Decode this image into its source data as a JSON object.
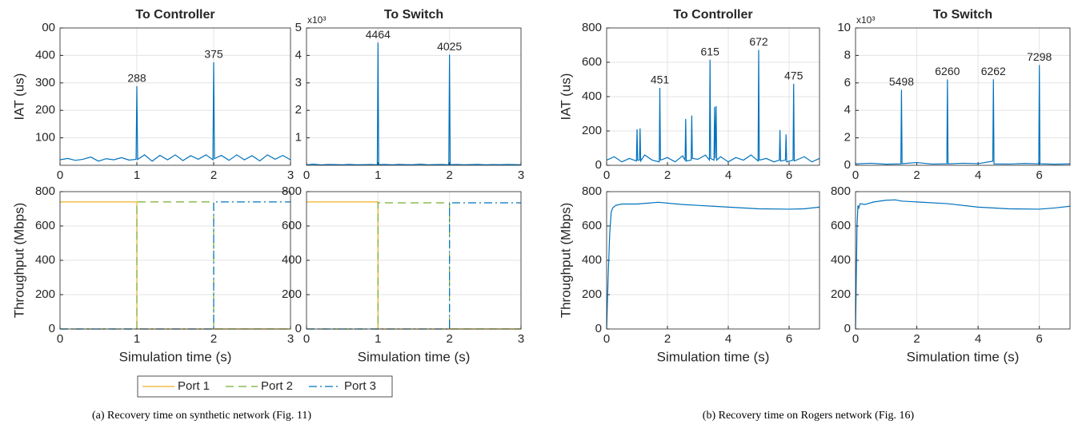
{
  "chart_data": [
    {
      "type": "line",
      "title": "To Controller",
      "ylabel": "IAT (us)",
      "xlim": [
        0,
        3
      ],
      "xticks": [
        0,
        1,
        2,
        3
      ],
      "ylim": [
        0,
        500
      ],
      "yticks": [
        100,
        200,
        300,
        400,
        {
          "value": 500,
          "label": "00"
        }
      ],
      "grid": true,
      "series": [
        {
          "color": "#0072BD",
          "x": [
            0,
            0.1,
            0.2,
            0.3,
            0.4,
            0.5,
            0.6,
            0.7,
            0.8,
            0.9,
            0.99,
            1,
            1.01,
            1.1,
            1.2,
            1.3,
            1.4,
            1.5,
            1.6,
            1.7,
            1.8,
            1.9,
            1.99,
            2,
            2.01,
            2.1,
            2.2,
            2.3,
            2.4,
            2.5,
            2.6,
            2.7,
            2.8,
            2.9,
            3
          ],
          "values": [
            20,
            25,
            18,
            22,
            30,
            15,
            24,
            20,
            28,
            19,
            22,
            288,
            21,
            38,
            15,
            36,
            20,
            38,
            17,
            35,
            22,
            38,
            20,
            375,
            24,
            36,
            18,
            38,
            20,
            35,
            16,
            38,
            22,
            36,
            20
          ]
        }
      ],
      "annotations": [
        {
          "x": 1,
          "y": 288
        },
        {
          "x": 2,
          "y": 375
        }
      ]
    },
    {
      "type": "line",
      "title": "To Switch",
      "y_multiplier": "x10³",
      "xlim": [
        0,
        3
      ],
      "xticks": [
        0,
        1,
        2,
        3
      ],
      "ylim": [
        0,
        5000
      ],
      "yticks": [
        {
          "value": 1000,
          "label": "1"
        },
        {
          "value": 2000,
          "label": "2"
        },
        {
          "value": 3000,
          "label": "3"
        },
        {
          "value": 4000,
          "label": "4"
        },
        {
          "value": 5000,
          "label": "5"
        }
      ],
      "grid": true,
      "series": [
        {
          "color": "#0072BD",
          "x": [
            0,
            0.1,
            0.2,
            0.3,
            0.4,
            0.5,
            0.6,
            0.7,
            0.8,
            0.9,
            0.99,
            1,
            1.01,
            1.1,
            1.2,
            1.3,
            1.4,
            1.5,
            1.6,
            1.7,
            1.8,
            1.9,
            1.99,
            2,
            2.01,
            2.1,
            2.2,
            2.3,
            2.4,
            2.5,
            2.6,
            2.7,
            2.8,
            2.9,
            3
          ],
          "values": [
            20,
            40,
            15,
            30,
            25,
            20,
            35,
            18,
            22,
            30,
            20,
            4464,
            25,
            30,
            20,
            35,
            22,
            28,
            40,
            20,
            25,
            30,
            20,
            4025,
            22,
            30,
            18,
            25,
            35,
            20,
            28,
            22,
            30,
            25,
            20
          ]
        }
      ],
      "annotations": [
        {
          "x": 1,
          "y": 4464
        },
        {
          "x": 2,
          "y": 4025
        }
      ]
    },
    {
      "type": "line",
      "ylabel": "Throughput (Mbps)",
      "xlabel": "Simulation time (s)",
      "xlim": [
        0,
        3
      ],
      "xticks": [
        0,
        1,
        2,
        3
      ],
      "ylim": [
        0,
        800
      ],
      "yticks": [
        0,
        200,
        400,
        600,
        800
      ],
      "grid": true,
      "legend": "below",
      "series": [
        {
          "name": "Port 1",
          "color": "#EDB120",
          "linestyle": "solid",
          "x": [
            0,
            1,
            1,
            3
          ],
          "values": [
            740,
            740,
            0,
            0
          ]
        },
        {
          "name": "Port 2",
          "color": "#77AC30",
          "linestyle": "dashed",
          "x": [
            0,
            1,
            1,
            2,
            2,
            3
          ],
          "values": [
            0,
            0,
            740,
            740,
            0,
            0
          ]
        },
        {
          "name": "Port 3",
          "color": "#0072BD",
          "linestyle": "dashdot",
          "x": [
            0,
            2,
            2,
            3
          ],
          "values": [
            0,
            0,
            740,
            740
          ]
        }
      ]
    },
    {
      "type": "line",
      "xlabel": "Simulation time (s)",
      "xlim": [
        0,
        3
      ],
      "xticks": [
        0,
        1,
        2,
        3
      ],
      "ylim": [
        0,
        800
      ],
      "yticks": [
        0,
        200,
        400,
        600,
        800
      ],
      "grid": true,
      "series": [
        {
          "color": "#EDB120",
          "linestyle": "solid",
          "x": [
            0,
            1,
            1,
            3
          ],
          "values": [
            740,
            740,
            0,
            0
          ]
        },
        {
          "color": "#77AC30",
          "linestyle": "dashed",
          "x": [
            0,
            1,
            1,
            2,
            2,
            3
          ],
          "values": [
            0,
            0,
            735,
            735,
            0,
            0
          ]
        },
        {
          "color": "#0072BD",
          "linestyle": "dashdot",
          "x": [
            0,
            2,
            2,
            3
          ],
          "values": [
            0,
            0,
            735,
            735
          ]
        }
      ]
    },
    {
      "type": "line",
      "title": "To Controller",
      "ylabel": "IAT (us)",
      "xlim": [
        0,
        7
      ],
      "xticks": [
        0,
        2,
        4,
        6
      ],
      "ylim": [
        0,
        800
      ],
      "yticks": [
        0,
        200,
        400,
        600,
        800
      ],
      "grid": true,
      "series": [
        {
          "color": "#0072BD",
          "x": [
            0,
            0.25,
            0.5,
            0.75,
            0.98,
            1.0,
            1.02,
            1.08,
            1.1,
            1.12,
            1.25,
            1.5,
            1.73,
            1.75,
            1.77,
            2.0,
            2.25,
            2.5,
            2.58,
            2.6,
            2.62,
            2.78,
            2.8,
            2.82,
            3.0,
            3.25,
            3.38,
            3.4,
            3.42,
            3.53,
            3.55,
            3.57,
            3.6,
            3.62,
            3.75,
            4.0,
            4.25,
            4.5,
            4.75,
            4.98,
            5.0,
            5.02,
            5.25,
            5.5,
            5.68,
            5.7,
            5.72,
            5.88,
            5.9,
            5.92,
            6.13,
            6.15,
            6.17,
            6.5,
            6.75,
            7.0
          ],
          "values": [
            30,
            50,
            20,
            40,
            25,
            210,
            30,
            30,
            215,
            25,
            60,
            30,
            20,
            451,
            30,
            45,
            20,
            55,
            30,
            270,
            25,
            30,
            290,
            40,
            35,
            60,
            30,
            615,
            40,
            30,
            340,
            40,
            345,
            30,
            50,
            20,
            45,
            30,
            60,
            25,
            672,
            30,
            40,
            20,
            30,
            205,
            25,
            30,
            180,
            20,
            30,
            475,
            25,
            50,
            20,
            40
          ]
        }
      ],
      "annotations": [
        {
          "x": 1.75,
          "y": 451
        },
        {
          "x": 3.4,
          "y": 615
        },
        {
          "x": 5.0,
          "y": 672
        },
        {
          "x": 6.15,
          "y": 475
        }
      ]
    },
    {
      "type": "line",
      "title": "To Switch",
      "y_multiplier": "x10³",
      "xlim": [
        0,
        7
      ],
      "xticks": [
        0,
        2,
        4,
        6
      ],
      "ylim": [
        0,
        10000
      ],
      "yticks": [
        0,
        {
          "value": 2000,
          "label": "2"
        },
        {
          "value": 4000,
          "label": "4"
        },
        {
          "value": 6000,
          "label": "6"
        },
        {
          "value": 8000,
          "label": "8"
        },
        {
          "value": 10000,
          "label": "10"
        }
      ],
      "grid": true,
      "series": [
        {
          "color": "#0072BD",
          "x": [
            0,
            0.5,
            1.0,
            1.48,
            1.5,
            1.52,
            2.0,
            2.5,
            2.98,
            3.0,
            3.02,
            3.5,
            4.0,
            4.48,
            4.5,
            4.52,
            5.0,
            5.5,
            5.98,
            6.0,
            6.02,
            6.5,
            7.0
          ],
          "values": [
            100,
            150,
            80,
            100,
            5498,
            120,
            200,
            90,
            110,
            6260,
            100,
            150,
            120,
            300,
            6262,
            100,
            90,
            130,
            100,
            7298,
            110,
            80,
            100
          ]
        }
      ],
      "annotations": [
        {
          "x": 1.5,
          "y": 5498
        },
        {
          "x": 3.0,
          "y": 6260
        },
        {
          "x": 4.5,
          "y": 6262
        },
        {
          "x": 6.0,
          "y": 7298
        }
      ]
    },
    {
      "type": "line",
      "ylabel": "Throughput (Mbps)",
      "xlabel": "Simulation time (s)",
      "xlim": [
        0,
        7
      ],
      "xticks": [
        0,
        2,
        4,
        6
      ],
      "ylim": [
        0,
        800
      ],
      "yticks": [
        0,
        200,
        400,
        600,
        800
      ],
      "grid": true,
      "series": [
        {
          "color": "#0072BD",
          "x": [
            0,
            0.05,
            0.1,
            0.15,
            0.2,
            0.3,
            0.5,
            1,
            1.7,
            2.5,
            3,
            4,
            5,
            6,
            6.5,
            7
          ],
          "values": [
            0,
            300,
            550,
            680,
            705,
            720,
            728,
            728,
            738,
            725,
            720,
            710,
            700,
            698,
            700,
            710
          ]
        }
      ]
    },
    {
      "type": "line",
      "xlabel": "Simulation time (s)",
      "xlim": [
        0,
        7
      ],
      "xticks": [
        0,
        2,
        4,
        6
      ],
      "ylim": [
        0,
        800
      ],
      "yticks": [
        0,
        200,
        400,
        600,
        800
      ],
      "grid": true,
      "series": [
        {
          "color": "#0072BD",
          "x": [
            0,
            0.05,
            0.08,
            0.1,
            0.15,
            0.3,
            0.6,
            1,
            1.3,
            1.5,
            2,
            3,
            4,
            5,
            6,
            6.5,
            7
          ],
          "values": [
            0,
            600,
            720,
            700,
            730,
            725,
            740,
            750,
            752,
            745,
            740,
            730,
            710,
            700,
            698,
            705,
            715
          ]
        }
      ]
    }
  ],
  "captions": [
    "(a) Recovery time on synthetic network (Fig. 11)",
    "(b) Recovery time on Rogers network (Fig. 16)"
  ]
}
